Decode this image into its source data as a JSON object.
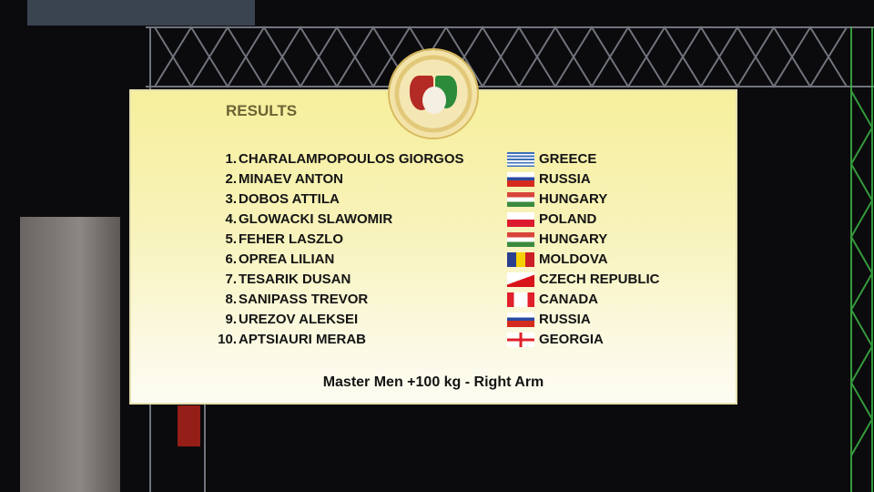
{
  "board": {
    "title": "RESULTS",
    "footer": "Master Men +100 kg - Right Arm",
    "results": [
      {
        "rank": "1.",
        "name": "CHARALAMPOPOULOS GIORGOS",
        "country": "GREECE",
        "flag": "greece-flag-icon"
      },
      {
        "rank": "2.",
        "name": "MINAEV ANTON",
        "country": "RUSSIA",
        "flag": "russia-flag-icon"
      },
      {
        "rank": "3.",
        "name": "DOBOS ATTILA",
        "country": "HUNGARY",
        "flag": "hungary-flag-icon"
      },
      {
        "rank": "4.",
        "name": "GLOWACKI SLAWOMIR",
        "country": "POLAND",
        "flag": "poland-flag-icon"
      },
      {
        "rank": "5.",
        "name": "FEHER LASZLO",
        "country": "HUNGARY",
        "flag": "hungary-flag-icon"
      },
      {
        "rank": "6.",
        "name": "OPREA LILIAN",
        "country": "MOLDOVA",
        "flag": "moldova-flag-icon"
      },
      {
        "rank": "7.",
        "name": "TESARIK DUSAN",
        "country": "CZECH REPUBLIC",
        "flag": "czech-flag-icon"
      },
      {
        "rank": "8.",
        "name": "SANIPASS TREVOR",
        "country": "CANADA",
        "flag": "canada-flag-icon"
      },
      {
        "rank": "9.",
        "name": "UREZOV ALEKSEI",
        "country": "RUSSIA",
        "flag": "russia-flag-icon"
      },
      {
        "rank": "10.",
        "name": "APTSIAURI MERAB",
        "country": "GEORGIA",
        "flag": "georgia-flag-icon"
      }
    ]
  },
  "colors": {
    "panel_top": "#f6ef9c",
    "panel_bottom": "#fdfcf2",
    "title": "#6b6335",
    "text": "#141414"
  }
}
